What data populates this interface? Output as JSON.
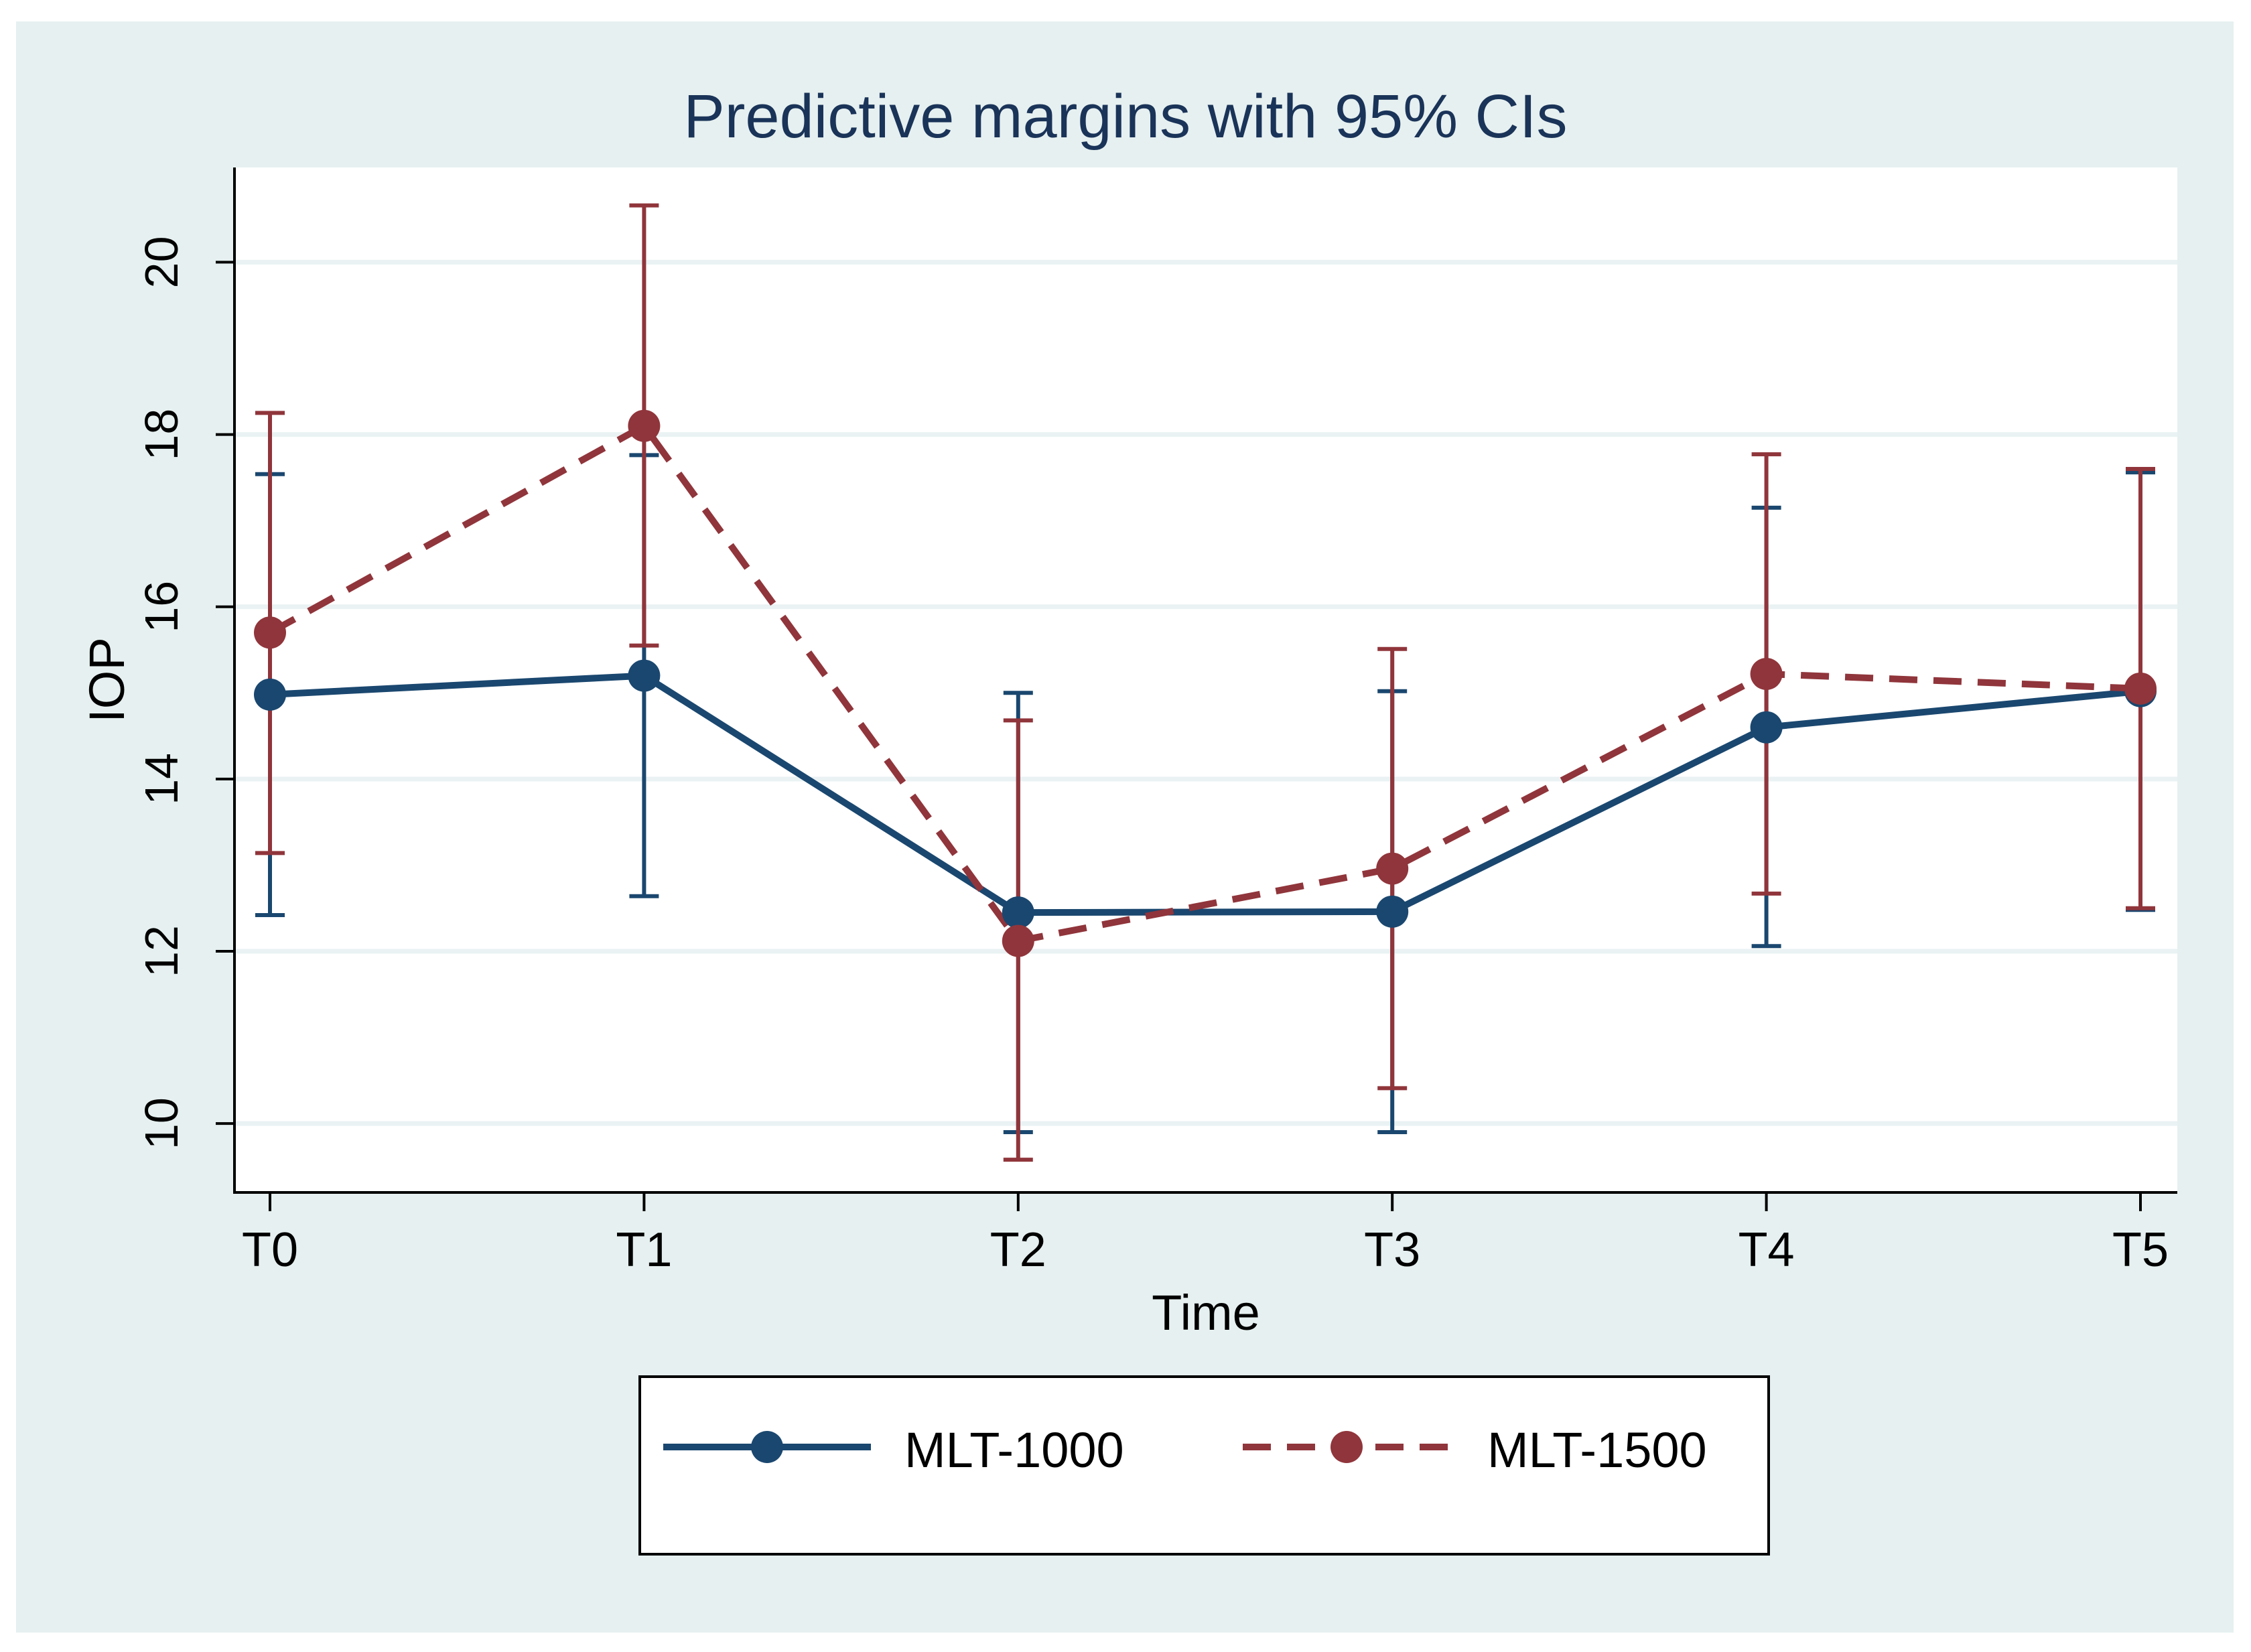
{
  "chart_data": {
    "type": "line",
    "title": "Predictive margins with 95% CIs",
    "xlabel": "Time",
    "ylabel": "IOP",
    "categories": [
      "T0",
      "T1",
      "T2",
      "T3",
      "T4",
      "T5"
    ],
    "ylim": [
      9.2,
      21.1
    ],
    "yticks": [
      10,
      12,
      14,
      16,
      18,
      20
    ],
    "grid": true,
    "legend_position": "bottom",
    "series": [
      {
        "name": "MLT-1000",
        "color": "#1a476f",
        "line_style": "solid",
        "values": [
          14.98,
          15.2,
          12.45,
          12.46,
          14.6,
          15.02
        ],
        "ci_lower": [
          12.42,
          12.64,
          9.9,
          9.9,
          12.06,
          12.48
        ],
        "ci_upper": [
          17.54,
          17.76,
          15.0,
          15.02,
          17.15,
          17.56
        ]
      },
      {
        "name": "MLT-1500",
        "color": "#90353b",
        "line_style": "dashed",
        "values": [
          15.7,
          18.1,
          12.12,
          12.96,
          15.22,
          15.05
        ],
        "ci_lower": [
          13.14,
          15.55,
          9.58,
          10.41,
          12.67,
          12.5
        ],
        "ci_upper": [
          18.25,
          20.66,
          14.68,
          15.51,
          17.77,
          17.6
        ]
      }
    ]
  }
}
